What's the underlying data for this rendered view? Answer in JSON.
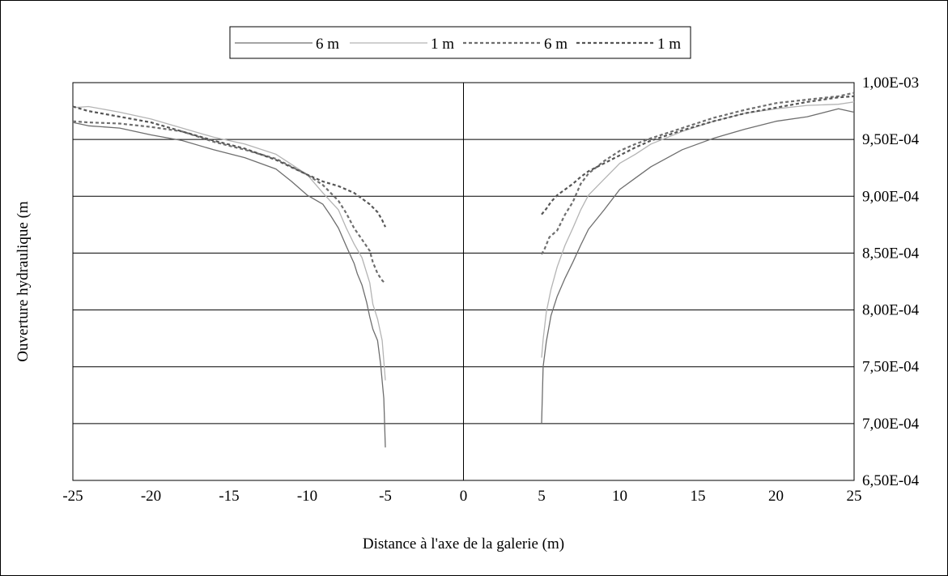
{
  "chart_data": {
    "type": "line",
    "title": "",
    "xlabel": "Distance à l'axe de la galerie (m)",
    "ylabel": "Ouverture hydraulique (m",
    "xlim": [
      -25,
      25
    ],
    "ylim": [
      0.00065,
      0.001
    ],
    "x_ticks": [
      -25,
      -20,
      -15,
      -10,
      -5,
      0,
      5,
      10,
      15,
      20,
      25
    ],
    "x_tick_labels": [
      "-25",
      "-20",
      "-15",
      "-10",
      "-5",
      "0",
      "5",
      "10",
      "15",
      "20",
      "25"
    ],
    "y_ticks": [
      0.00065,
      0.0007,
      0.00075,
      0.0008,
      0.00085,
      0.0009,
      0.00095,
      0.001
    ],
    "y_tick_labels": [
      "6,50E-04",
      "7,00E-04",
      "7,50E-04",
      "8,00E-04",
      "8,50E-04",
      "9,00E-04",
      "9,50E-04",
      "1,00E-03"
    ],
    "y_axis_side": "right",
    "grid": "horizontal",
    "legend_position": "top",
    "series": [
      {
        "name": "6 m",
        "color": "#6e6e6e",
        "dash": "solid",
        "segments": [
          {
            "x": [
              -25,
              -24,
              -22,
              -20,
              -18,
              -16,
              -14,
              -12,
              -11,
              -10,
              -9,
              -8.5,
              -8,
              -7.5,
              -7,
              -6.8,
              -6.5,
              -6.2,
              -6,
              -5.8,
              -5.5,
              -5.3,
              -5.1,
              -5
            ],
            "y": [
              0.000965,
              0.000962,
              0.00096,
              0.000954,
              0.000949,
              0.000941,
              0.000934,
              0.000924,
              0.000913,
              0.000901,
              0.000893,
              0.000883,
              0.000872,
              0.000856,
              0.000841,
              0.000832,
              0.000822,
              0.000807,
              0.000794,
              0.000783,
              0.000773,
              0.000752,
              0.000722,
              0.000679
            ]
          },
          {
            "x": [
              5,
              5.1,
              5.3,
              5.6,
              6,
              6.5,
              7,
              7.5,
              8,
              9,
              10,
              11,
              12,
              14,
              16,
              18,
              20,
              22,
              24,
              25
            ],
            "y": [
              0.0007,
              0.00075,
              0.000772,
              0.000795,
              0.000812,
              0.000828,
              0.000842,
              0.000857,
              0.000871,
              0.000888,
              0.000906,
              0.000916,
              0.000926,
              0.000941,
              0.000951,
              0.000959,
              0.000966,
              0.00097,
              0.000977,
              0.000974
            ]
          }
        ]
      },
      {
        "name": "1 m",
        "color": "#b4b4b4",
        "dash": "solid",
        "segments": [
          {
            "x": [
              -25,
              -24,
              -22,
              -20,
              -18,
              -16,
              -14,
              -12,
              -10,
              -9,
              -8,
              -7.5,
              -7,
              -6.5,
              -6,
              -5.8,
              -5.5,
              -5.2,
              -5
            ],
            "y": [
              0.000978,
              0.000979,
              0.000974,
              0.000968,
              0.00096,
              0.000952,
              0.000946,
              0.000937,
              0.000919,
              0.000903,
              0.000888,
              0.000872,
              0.000858,
              0.000846,
              0.000824,
              0.000805,
              0.000792,
              0.000773,
              0.000738
            ]
          },
          {
            "x": [
              5,
              5.1,
              5.3,
              5.6,
              6,
              6.5,
              7,
              7.5,
              8,
              9,
              10,
              11,
              12,
              14,
              16,
              18,
              20,
              22,
              24,
              25
            ],
            "y": [
              0.000758,
              0.000774,
              0.000798,
              0.000818,
              0.000838,
              0.000857,
              0.000872,
              0.000888,
              0.000901,
              0.000915,
              0.000929,
              0.000937,
              0.000946,
              0.000957,
              0.000966,
              0.000973,
              0.000977,
              0.00098,
              0.000981,
              0.000983
            ]
          }
        ]
      },
      {
        "name": "6 m",
        "color": "#6e6e6e",
        "dash": "dotted",
        "segments": [
          {
            "x": [
              -25,
              -24,
              -22,
              -20,
              -18,
              -16,
              -14,
              -12,
              -10,
              -9,
              -8,
              -7.5,
              -7,
              -6.5,
              -6,
              -5.8,
              -5.5,
              -5.2,
              -5
            ],
            "y": [
              0.000966,
              0.000965,
              0.000964,
              0.000961,
              0.000957,
              0.000948,
              0.000941,
              0.000933,
              0.000919,
              0.00091,
              0.000896,
              0.000885,
              0.000872,
              0.000862,
              0.000852,
              0.000842,
              0.000832,
              0.000826,
              0.000823
            ]
          },
          {
            "x": [
              5,
              5.2,
              5.5,
              6,
              6.5,
              7,
              7.5,
              8,
              9,
              10,
              11,
              12,
              14,
              16,
              18,
              20,
              22,
              24,
              25
            ],
            "y": [
              0.000849,
              0.000854,
              0.000864,
              0.00087,
              0.000884,
              0.000895,
              0.000911,
              0.00092,
              0.000931,
              0.00094,
              0.000946,
              0.000951,
              0.00096,
              0.000969,
              0.000976,
              0.000982,
              0.000985,
              0.000988,
              0.000991
            ]
          }
        ]
      },
      {
        "name": "1 m",
        "color": "#555555",
        "dash": "dotted",
        "segments": [
          {
            "x": [
              -25,
              -24,
              -22,
              -20,
              -18,
              -16,
              -14,
              -12,
              -10,
              -9,
              -8,
              -7,
              -6.5,
              -6,
              -5.5,
              -5.2,
              -5
            ],
            "y": [
              0.000979,
              0.000975,
              0.00097,
              0.000965,
              0.000957,
              0.000949,
              0.000942,
              0.000932,
              0.000919,
              0.000913,
              0.000909,
              0.000903,
              0.000898,
              0.000893,
              0.000886,
              0.000879,
              0.000873
            ]
          },
          {
            "x": [
              5,
              5.3,
              5.6,
              6,
              6.5,
              7,
              7.5,
              8,
              9,
              10,
              11,
              12,
              14,
              16,
              18,
              20,
              22,
              24,
              25
            ],
            "y": [
              0.000884,
              0.000889,
              0.000895,
              0.000901,
              0.000906,
              0.000911,
              0.000917,
              0.000922,
              0.000929,
              0.000936,
              0.000943,
              0.000949,
              0.000958,
              0.000966,
              0.000973,
              0.000978,
              0.000983,
              0.000987,
              0.000988
            ]
          }
        ]
      }
    ]
  }
}
